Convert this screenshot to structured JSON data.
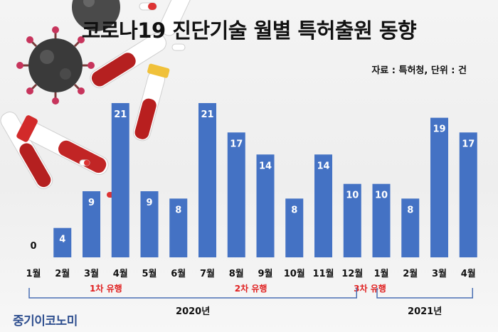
{
  "title": "코로나19 진단기술 월별 특허출원 동향",
  "source": "자료 : 특허청, 단위 : 건",
  "logo": "중기이코노미",
  "colors": {
    "bar": "#4472c4",
    "bar_label": "#ffffff",
    "zero_label": "#111111",
    "wave": "#e02020",
    "bracket": "#4a6fb3"
  },
  "chart_data": {
    "type": "bar",
    "title": "코로나19 진단기술 월별 특허출원 동향",
    "xlabel": "",
    "ylabel": "",
    "unit": "건",
    "categories": [
      "1월",
      "2월",
      "3월",
      "4월",
      "5월",
      "6월",
      "7월",
      "8월",
      "9월",
      "10월",
      "11월",
      "12월",
      "1월",
      "2월",
      "3월",
      "4월"
    ],
    "values": [
      0,
      4,
      9,
      21,
      9,
      8,
      21,
      17,
      14,
      8,
      14,
      10,
      10,
      8,
      19,
      17
    ],
    "ylim": [
      0,
      21
    ],
    "grid": false,
    "data_labels": true,
    "waves": [
      {
        "label": "1차 유행",
        "months": [
          2,
          3
        ]
      },
      {
        "label": "2차 유행",
        "months": [
          7,
          8
        ]
      },
      {
        "label": "3차 유행",
        "months": [
          12
        ]
      }
    ],
    "year_groups": [
      {
        "label": "2020년",
        "start": 0,
        "end": 11
      },
      {
        "label": "2021년",
        "start": 12,
        "end": 15
      }
    ]
  }
}
